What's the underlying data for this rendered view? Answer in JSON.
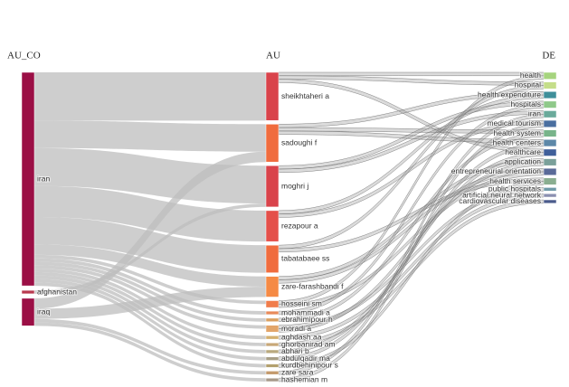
{
  "chart_data": {
    "type": "sankey",
    "columns": [
      "AU_CO",
      "AU",
      "DE"
    ],
    "nodes": [
      {
        "label": "iran",
        "column": 0,
        "color": "#9b0f45"
      },
      {
        "label": "afghanistan",
        "column": 0,
        "color": "#b8394f"
      },
      {
        "label": "iraq",
        "column": 0,
        "color": "#9b0f45"
      },
      {
        "label": "sheikhtaheri a",
        "column": 1,
        "color": "#d9434b"
      },
      {
        "label": "sadoughi f",
        "column": 1,
        "color": "#f06c3e"
      },
      {
        "label": "moghri j",
        "column": 1,
        "color": "#d9434b"
      },
      {
        "label": "rezapour a",
        "column": 1,
        "color": "#e4504a"
      },
      {
        "label": "tabatabaee ss",
        "column": 1,
        "color": "#f06c3e"
      },
      {
        "label": "zare-farashbandi f",
        "column": 1,
        "color": "#f58a45"
      },
      {
        "label": "hosseini sm",
        "column": 1,
        "color": "#f07c4a"
      },
      {
        "label": "mohammadi a",
        "column": 1,
        "color": "#e88a5a"
      },
      {
        "label": "ebrahimipour h",
        "column": 1,
        "color": "#d9a060"
      },
      {
        "label": "moradi a",
        "column": 1,
        "color": "#e2a56a"
      },
      {
        "label": "aghdash aa",
        "column": 1,
        "color": "#d4b070"
      },
      {
        "label": "ghorbanirad am",
        "column": 1,
        "color": "#c8a878"
      },
      {
        "label": "abhari b",
        "column": 1,
        "color": "#b9a97e"
      },
      {
        "label": "abdulqadir ma",
        "column": 1,
        "color": "#a89f86"
      },
      {
        "label": "kurdbehinipour s",
        "column": 1,
        "color": "#b3a06e"
      },
      {
        "label": "zare sara",
        "column": 1,
        "color": "#c49a6c"
      },
      {
        "label": "hashemian m",
        "column": 1,
        "color": "#a79a8a"
      },
      {
        "label": "health",
        "column": 2,
        "color": "#a6d47e"
      },
      {
        "label": "hospital",
        "column": 2,
        "color": "#c5de8a"
      },
      {
        "label": "health expenditure",
        "column": 2,
        "color": "#3f8f9a"
      },
      {
        "label": "hospitals",
        "column": 2,
        "color": "#8fc98a"
      },
      {
        "label": "iran",
        "column": 2,
        "color": "#6aaa9b"
      },
      {
        "label": "medical tourism",
        "column": 2,
        "color": "#4a6fa0"
      },
      {
        "label": "health system",
        "column": 2,
        "color": "#78b48a"
      },
      {
        "label": "health centers",
        "column": 2,
        "color": "#5d88a8"
      },
      {
        "label": "healthcare",
        "column": 2,
        "color": "#3f5f9a"
      },
      {
        "label": "application",
        "column": 2,
        "color": "#7aa09a"
      },
      {
        "label": "entrepreneurial orientation",
        "column": 2,
        "color": "#5a6a98"
      },
      {
        "label": "health services",
        "column": 2,
        "color": "#8aae90"
      },
      {
        "label": "public hospitals",
        "column": 2,
        "color": "#6f9aa8"
      },
      {
        "label": "artificial neural network",
        "column": 2,
        "color": "#8a8fb0"
      },
      {
        "label": "cardiovascular diseases",
        "column": 2,
        "color": "#4b5b8c"
      }
    ],
    "links": [
      {
        "source": 0,
        "target": 3,
        "value": 14
      },
      {
        "source": 0,
        "target": 4,
        "value": 8
      },
      {
        "source": 2,
        "target": 4,
        "value": 3
      },
      {
        "source": 0,
        "target": 5,
        "value": 11
      },
      {
        "source": 1,
        "target": 5,
        "value": 1
      },
      {
        "source": 0,
        "target": 6,
        "value": 9
      },
      {
        "source": 0,
        "target": 7,
        "value": 8
      },
      {
        "source": 0,
        "target": 8,
        "value": 3
      },
      {
        "source": 2,
        "target": 8,
        "value": 3
      },
      {
        "source": 0,
        "target": 9,
        "value": 1
      },
      {
        "source": 0,
        "target": 10,
        "value": 1
      },
      {
        "source": 0,
        "target": 11,
        "value": 1
      },
      {
        "source": 0,
        "target": 12,
        "value": 1
      },
      {
        "source": 0,
        "target": 13,
        "value": 1
      },
      {
        "source": 0,
        "target": 14,
        "value": 1
      },
      {
        "source": 0,
        "target": 15,
        "value": 1
      },
      {
        "source": 0,
        "target": 16,
        "value": 1
      },
      {
        "source": 0,
        "target": 17,
        "value": 1
      },
      {
        "source": 2,
        "target": 18,
        "value": 1
      },
      {
        "source": 2,
        "target": 19,
        "value": 1
      },
      {
        "source": 3,
        "target": 20,
        "value": 1
      },
      {
        "source": 3,
        "target": 21,
        "value": 1
      },
      {
        "source": 3,
        "target": 28,
        "value": 1
      },
      {
        "source": 4,
        "target": 22,
        "value": 1
      },
      {
        "source": 4,
        "target": 26,
        "value": 1
      },
      {
        "source": 4,
        "target": 27,
        "value": 1
      },
      {
        "source": 5,
        "target": 23,
        "value": 1
      },
      {
        "source": 5,
        "target": 24,
        "value": 1
      },
      {
        "source": 6,
        "target": 22,
        "value": 1
      },
      {
        "source": 6,
        "target": 25,
        "value": 1
      },
      {
        "source": 7,
        "target": 21,
        "value": 1
      },
      {
        "source": 7,
        "target": 31,
        "value": 1
      },
      {
        "source": 8,
        "target": 29,
        "value": 1
      },
      {
        "source": 8,
        "target": 30,
        "value": 1
      },
      {
        "source": 9,
        "target": 20,
        "value": 1
      },
      {
        "source": 9,
        "target": 30,
        "value": 1
      },
      {
        "source": 10,
        "target": 23,
        "value": 1
      },
      {
        "source": 11,
        "target": 26,
        "value": 1
      },
      {
        "source": 12,
        "target": 32,
        "value": 1
      },
      {
        "source": 12,
        "target": 29,
        "value": 1
      },
      {
        "source": 13,
        "target": 33,
        "value": 1
      },
      {
        "source": 14,
        "target": 34,
        "value": 1
      },
      {
        "source": 15,
        "target": 28,
        "value": 1
      },
      {
        "source": 16,
        "target": 27,
        "value": 1
      },
      {
        "source": 17,
        "target": 31,
        "value": 1
      },
      {
        "source": 18,
        "target": 24,
        "value": 1
      },
      {
        "source": 19,
        "target": 25,
        "value": 1
      }
    ]
  }
}
